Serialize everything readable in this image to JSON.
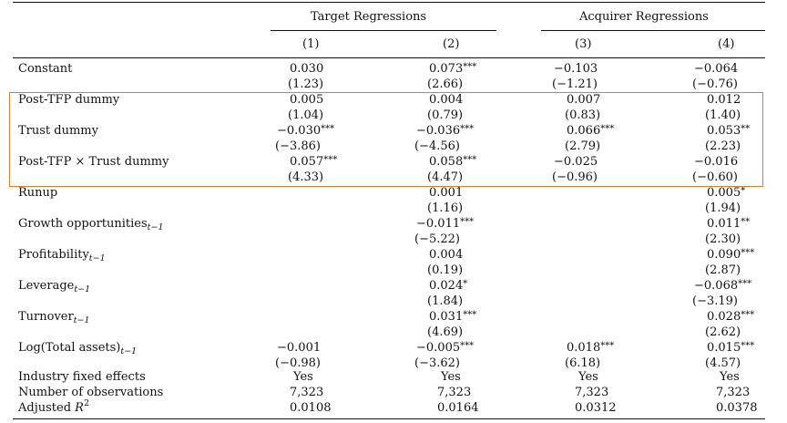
{
  "header": {
    "group_target": "Target Regressions",
    "group_acquirer": "Acquirer Regressions",
    "columns": [
      "(1)",
      "(2)",
      "(3)",
      "(4)"
    ]
  },
  "rows": [
    {
      "label": "Constant",
      "sub": "",
      "coef": [
        [
          "0.030",
          ""
        ],
        [
          "0.073",
          "***"
        ],
        [
          "−0.103",
          ""
        ],
        [
          "−0.064",
          ""
        ]
      ],
      "t": [
        "(1.23)",
        "(2.66)",
        "(−1.21)",
        "(−0.76)"
      ]
    },
    {
      "label": "Post-TFP dummy",
      "sub": "",
      "coef": [
        [
          "0.005",
          ""
        ],
        [
          "0.004",
          ""
        ],
        [
          "0.007",
          ""
        ],
        [
          "0.012",
          ""
        ]
      ],
      "t": [
        "(1.04)",
        "(0.79)",
        "(0.83)",
        "(1.40)"
      ]
    },
    {
      "label": "Trust dummy",
      "sub": "",
      "coef": [
        [
          "−0.030",
          "***"
        ],
        [
          "−0.036",
          "***"
        ],
        [
          "0.066",
          "***"
        ],
        [
          "0.053",
          "**"
        ]
      ],
      "t": [
        "(−3.86)",
        "(−4.56)",
        "(2.79)",
        "(2.23)"
      ]
    },
    {
      "label": "Post-TFP × Trust dummy",
      "sub": "",
      "coef": [
        [
          "0.057",
          "***"
        ],
        [
          "0.058",
          "***"
        ],
        [
          "−0.025",
          ""
        ],
        [
          "−0.016",
          ""
        ]
      ],
      "t": [
        "(4.33)",
        "(4.47)",
        "(−0.96)",
        "(−0.60)"
      ]
    },
    {
      "label": "Runup",
      "sub": "",
      "coef": [
        [
          "",
          ""
        ],
        [
          "0.001",
          ""
        ],
        [
          "",
          ""
        ],
        [
          "0.005",
          "*"
        ]
      ],
      "t": [
        "",
        "(1.16)",
        "",
        "(1.94)"
      ]
    },
    {
      "label": "Growth opportunities",
      "sub": "t−1",
      "coef": [
        [
          "",
          ""
        ],
        [
          "−0.011",
          "***"
        ],
        [
          "",
          ""
        ],
        [
          "0.011",
          "**"
        ]
      ],
      "t": [
        "",
        "(−5.22)",
        "",
        "(2.30)"
      ]
    },
    {
      "label": "Profitability",
      "sub": "t−1",
      "coef": [
        [
          "",
          ""
        ],
        [
          "0.004",
          ""
        ],
        [
          "",
          ""
        ],
        [
          "0.090",
          "***"
        ]
      ],
      "t": [
        "",
        "(0.19)",
        "",
        "(2.87)"
      ]
    },
    {
      "label": "Leverage",
      "sub": "t−1",
      "coef": [
        [
          "",
          ""
        ],
        [
          "0.024",
          "*"
        ],
        [
          "",
          ""
        ],
        [
          "−0.068",
          "***"
        ]
      ],
      "t": [
        "",
        "(1.84)",
        "",
        "(−3.19)"
      ]
    },
    {
      "label": "Turnover",
      "sub": "t−1",
      "coef": [
        [
          "",
          ""
        ],
        [
          "0.031",
          "***"
        ],
        [
          "",
          ""
        ],
        [
          "0.028",
          "***"
        ]
      ],
      "t": [
        "",
        "(4.69)",
        "",
        "(2.62)"
      ]
    },
    {
      "label": "Log(Total assets)",
      "sub": "t−1",
      "coef": [
        [
          "−0.001",
          ""
        ],
        [
          "−0.005",
          "***"
        ],
        [
          "0.018",
          "***"
        ],
        [
          "0.015",
          "***"
        ]
      ],
      "t": [
        "(−0.98)",
        "(−3.62)",
        "(6.18)",
        "(4.57)"
      ]
    }
  ],
  "footer": [
    {
      "label": "Industry fixed effects",
      "values": [
        "Yes",
        "Yes",
        "Yes",
        "Yes"
      ]
    },
    {
      "label": "Number of observations",
      "values": [
        "7,323",
        "7,323",
        "7,323",
        "7,323"
      ]
    },
    {
      "label": "Adjusted ",
      "label_math": "R",
      "label_sup": "2",
      "values": [
        "0.0108",
        "0.0164",
        "0.0312",
        "0.0378"
      ]
    }
  ],
  "highlight_color": "#e07b27"
}
